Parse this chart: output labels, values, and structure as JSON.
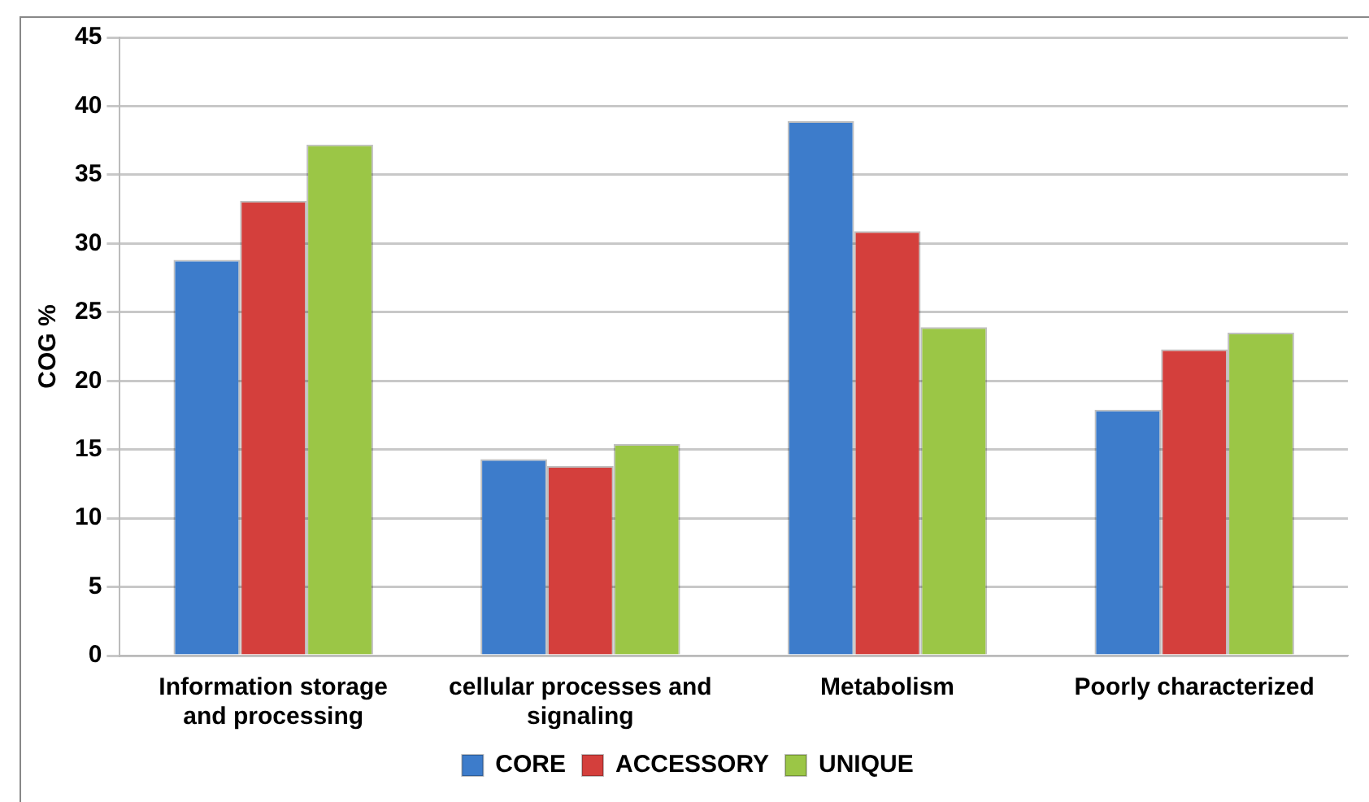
{
  "chart_data": {
    "type": "bar",
    "ylabel": "COG %",
    "categories": [
      "Information storage and processing",
      "cellular processes and signaling",
      "Metabolism",
      "Poorly characterized"
    ],
    "series": [
      {
        "name": "CORE",
        "color": "#3d7ccb",
        "values": [
          28.8,
          14.3,
          38.9,
          17.9
        ]
      },
      {
        "name": "ACCESSORY",
        "color": "#d43f3c",
        "values": [
          33.1,
          13.8,
          30.9,
          22.3
        ]
      },
      {
        "name": "UNIQUE",
        "color": "#9bc646",
        "values": [
          37.2,
          15.4,
          23.9,
          23.5
        ]
      }
    ],
    "ylim": [
      0,
      45
    ],
    "yticks": [
      0,
      5,
      10,
      15,
      20,
      25,
      30,
      35,
      40,
      45
    ],
    "grid": "y",
    "legend": "bottom"
  }
}
